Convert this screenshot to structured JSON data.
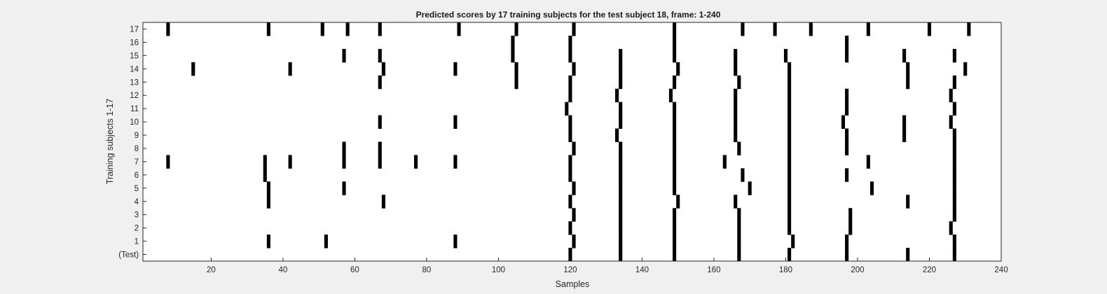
{
  "chart_data": {
    "type": "heatmap",
    "title": "Predicted scores by 17 training subjects for the test subject 18, frame: 1-240",
    "xlabel": "Samples",
    "ylabel": "Training subjects 1-17",
    "xlim": [
      1,
      240
    ],
    "x_ticks": [
      20,
      40,
      60,
      80,
      100,
      120,
      140,
      160,
      180,
      200,
      220,
      240
    ],
    "y_tick_labels": [
      "17",
      "16",
      "15",
      "14",
      "13",
      "12",
      "11",
      "10",
      "9",
      "8",
      "7",
      "6",
      "5",
      "4",
      "3",
      "2",
      "1",
      "(Test)"
    ],
    "grid": false,
    "colors": {
      "mark": "#000000",
      "background": "#ffffff",
      "figure": "#f0f0f0"
    },
    "rows": [
      {
        "label": "17",
        "marks": [
          8,
          36,
          51,
          58,
          67,
          89,
          105,
          121,
          149,
          168,
          177,
          187,
          203,
          220,
          231
        ]
      },
      {
        "label": "16",
        "marks": [
          104,
          120,
          149,
          197
        ]
      },
      {
        "label": "15",
        "marks": [
          57,
          67,
          104,
          120,
          134,
          149,
          166,
          180,
          197,
          213,
          227
        ]
      },
      {
        "label": "14",
        "marks": [
          15,
          42,
          68,
          88,
          105,
          121,
          134,
          150,
          166,
          181,
          214,
          230
        ]
      },
      {
        "label": "13",
        "marks": [
          67,
          105,
          120,
          134,
          149,
          167,
          181,
          214,
          227
        ]
      },
      {
        "label": "12",
        "marks": [
          120,
          133,
          148,
          166,
          181,
          197,
          226
        ]
      },
      {
        "label": "11",
        "marks": [
          119,
          134,
          149,
          166,
          181,
          197,
          227
        ]
      },
      {
        "label": "10",
        "marks": [
          67,
          88,
          120,
          134,
          149,
          166,
          181,
          196,
          213,
          226
        ]
      },
      {
        "label": "9",
        "marks": [
          120,
          133,
          149,
          166,
          181,
          197,
          213,
          227
        ]
      },
      {
        "label": "8",
        "marks": [
          57,
          67,
          121,
          134,
          149,
          167,
          181,
          197,
          227
        ]
      },
      {
        "label": "7",
        "marks": [
          8,
          35,
          42,
          57,
          67,
          77,
          88,
          120,
          134,
          149,
          163,
          181,
          203,
          227
        ]
      },
      {
        "label": "6",
        "marks": [
          35,
          120,
          134,
          149,
          168,
          181,
          197,
          227
        ]
      },
      {
        "label": "5",
        "marks": [
          36,
          57,
          121,
          134,
          149,
          170,
          181,
          204,
          227
        ]
      },
      {
        "label": "4",
        "marks": [
          36,
          68,
          120,
          134,
          150,
          166,
          181,
          214,
          227
        ]
      },
      {
        "label": "3",
        "marks": [
          121,
          134,
          149,
          167,
          181,
          198,
          227
        ]
      },
      {
        "label": "2",
        "marks": [
          120,
          134,
          149,
          167,
          181,
          198,
          226
        ]
      },
      {
        "label": "1",
        "marks": [
          36,
          52,
          88,
          121,
          134,
          149,
          167,
          182,
          197,
          227
        ]
      },
      {
        "label": "(Test)",
        "marks": [
          120,
          134,
          149,
          167,
          181,
          197,
          214,
          227
        ]
      }
    ]
  }
}
